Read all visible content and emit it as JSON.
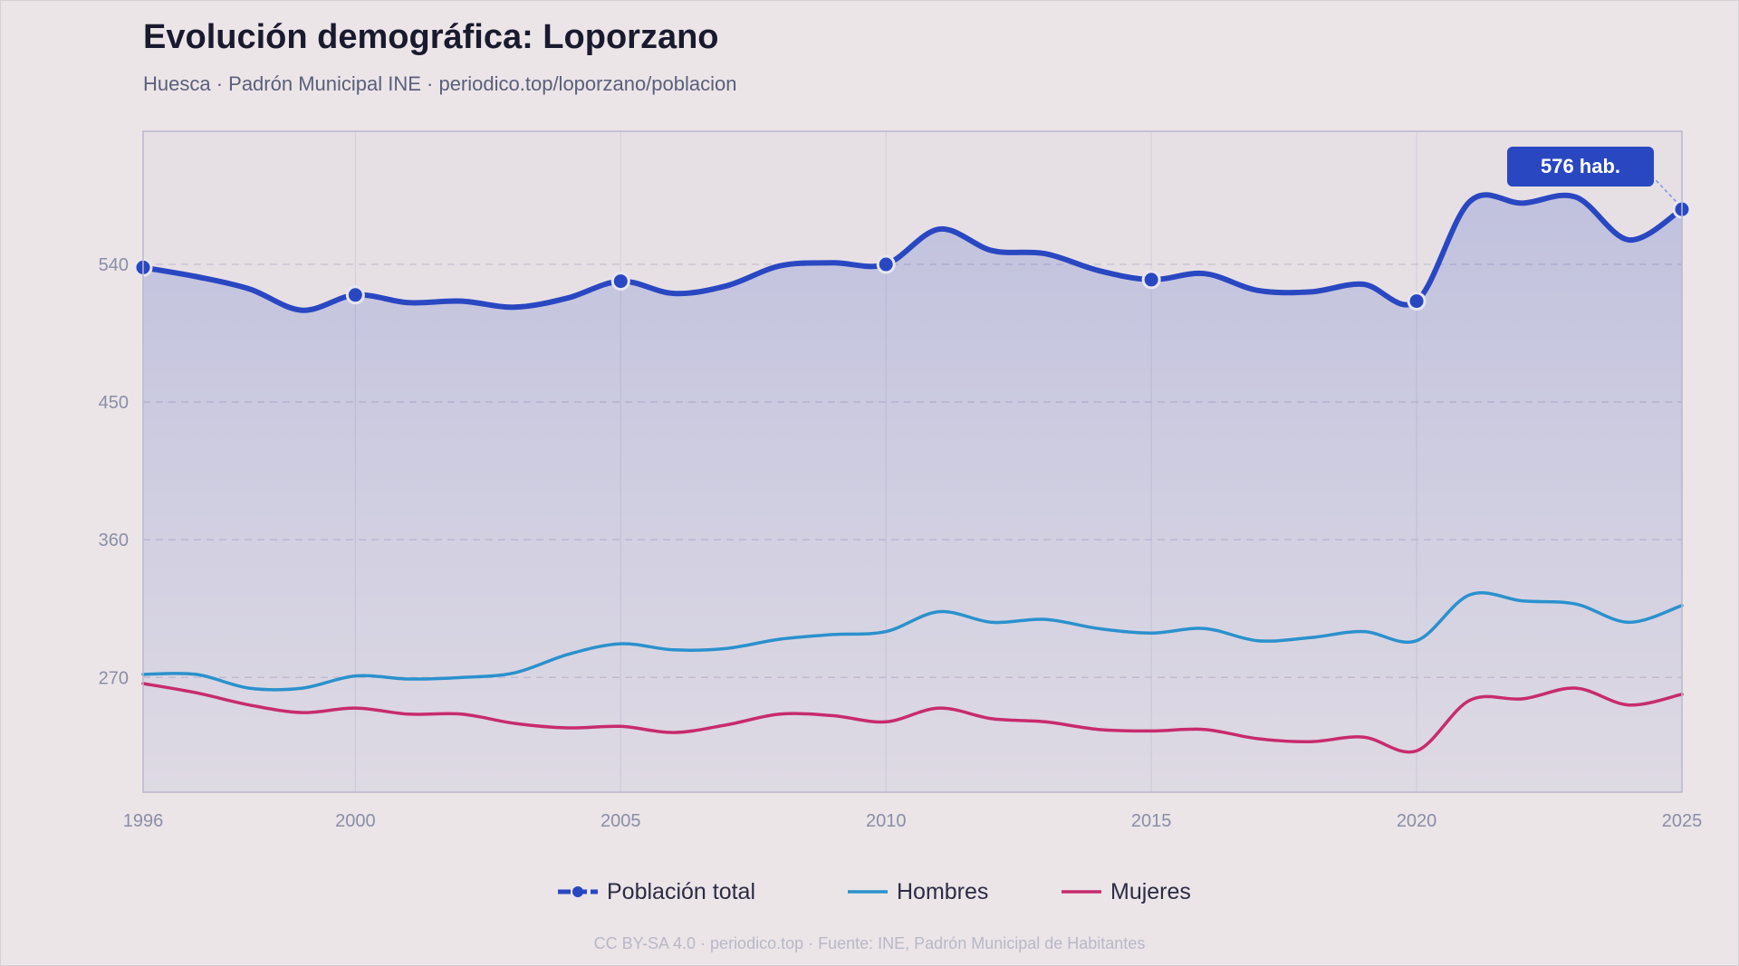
{
  "header": {
    "title": "Evolución demográfica: Loporzano",
    "subtitle": "Huesca · Padrón Municipal INE · periodico.top/loporzano/poblacion"
  },
  "footer": {
    "text": "CC BY-SA 4.0 · periodico.top · Fuente: INE, Padrón Municipal de Habitantes"
  },
  "colors": {
    "total": "#2a47c2",
    "hombres": "#2b91cc",
    "mujeres": "#c72b6e",
    "callout_bg": "#2a47c2",
    "axis_text": "#8a8ea6",
    "grid": "#cbc4d4"
  },
  "chart_data": {
    "type": "line",
    "x_ticks": [
      "1996",
      "2000",
      "2005",
      "2010",
      "2015",
      "2020",
      "2025"
    ],
    "y_ticks": [
      "270",
      "360",
      "450",
      "540"
    ],
    "xlim": [
      1996,
      2025
    ],
    "ylim": [
      195,
      627
    ],
    "grid": true,
    "legend_placement": "bottom-center",
    "callout": {
      "label": "576 hab.",
      "x": 2025,
      "y": 576
    },
    "series": [
      {
        "name": "Población total",
        "key": "total",
        "area": true,
        "markers_at": [
          1996,
          2000,
          2005,
          2010,
          2015,
          2020,
          2025
        ],
        "points": [
          [
            1996,
            538
          ],
          [
            1997,
            532
          ],
          [
            1998,
            524
          ],
          [
            1999,
            510
          ],
          [
            2000,
            520
          ],
          [
            2001,
            515
          ],
          [
            2002,
            516
          ],
          [
            2003,
            512
          ],
          [
            2004,
            518
          ],
          [
            2005,
            529
          ],
          [
            2006,
            521
          ],
          [
            2007,
            526
          ],
          [
            2008,
            539
          ],
          [
            2009,
            541
          ],
          [
            2010,
            540
          ],
          [
            2011,
            563
          ],
          [
            2012,
            549
          ],
          [
            2013,
            547
          ],
          [
            2014,
            536
          ],
          [
            2015,
            530
          ],
          [
            2016,
            534
          ],
          [
            2017,
            523
          ],
          [
            2018,
            522
          ],
          [
            2019,
            527
          ],
          [
            2020,
            516
          ],
          [
            2021,
            581
          ],
          [
            2022,
            580
          ],
          [
            2023,
            584
          ],
          [
            2024,
            556
          ],
          [
            2025,
            576
          ]
        ]
      },
      {
        "name": "Hombres",
        "key": "hombres",
        "area": false,
        "points": [
          [
            1996,
            272
          ],
          [
            1997,
            272
          ],
          [
            1998,
            263
          ],
          [
            1999,
            263
          ],
          [
            2000,
            271
          ],
          [
            2001,
            269
          ],
          [
            2002,
            270
          ],
          [
            2003,
            273
          ],
          [
            2004,
            285
          ],
          [
            2005,
            292
          ],
          [
            2006,
            288
          ],
          [
            2007,
            289
          ],
          [
            2008,
            295
          ],
          [
            2009,
            298
          ],
          [
            2010,
            300
          ],
          [
            2011,
            313
          ],
          [
            2012,
            306
          ],
          [
            2013,
            308
          ],
          [
            2014,
            302
          ],
          [
            2015,
            299
          ],
          [
            2016,
            302
          ],
          [
            2017,
            294
          ],
          [
            2018,
            296
          ],
          [
            2019,
            300
          ],
          [
            2020,
            294
          ],
          [
            2021,
            324
          ],
          [
            2022,
            320
          ],
          [
            2023,
            318
          ],
          [
            2024,
            306
          ],
          [
            2025,
            317
          ]
        ]
      },
      {
        "name": "Mujeres",
        "key": "mujeres",
        "area": false,
        "points": [
          [
            1996,
            266
          ],
          [
            1997,
            260
          ],
          [
            1998,
            252
          ],
          [
            1999,
            247
          ],
          [
            2000,
            250
          ],
          [
            2001,
            246
          ],
          [
            2002,
            246
          ],
          [
            2003,
            240
          ],
          [
            2004,
            237
          ],
          [
            2005,
            238
          ],
          [
            2006,
            234
          ],
          [
            2007,
            239
          ],
          [
            2008,
            246
          ],
          [
            2009,
            245
          ],
          [
            2010,
            241
          ],
          [
            2011,
            250
          ],
          [
            2012,
            243
          ],
          [
            2013,
            241
          ],
          [
            2014,
            236
          ],
          [
            2015,
            235
          ],
          [
            2016,
            236
          ],
          [
            2017,
            230
          ],
          [
            2018,
            228
          ],
          [
            2019,
            231
          ],
          [
            2020,
            222
          ],
          [
            2021,
            255
          ],
          [
            2022,
            256
          ],
          [
            2023,
            263
          ],
          [
            2024,
            252
          ],
          [
            2025,
            259
          ]
        ]
      }
    ]
  }
}
